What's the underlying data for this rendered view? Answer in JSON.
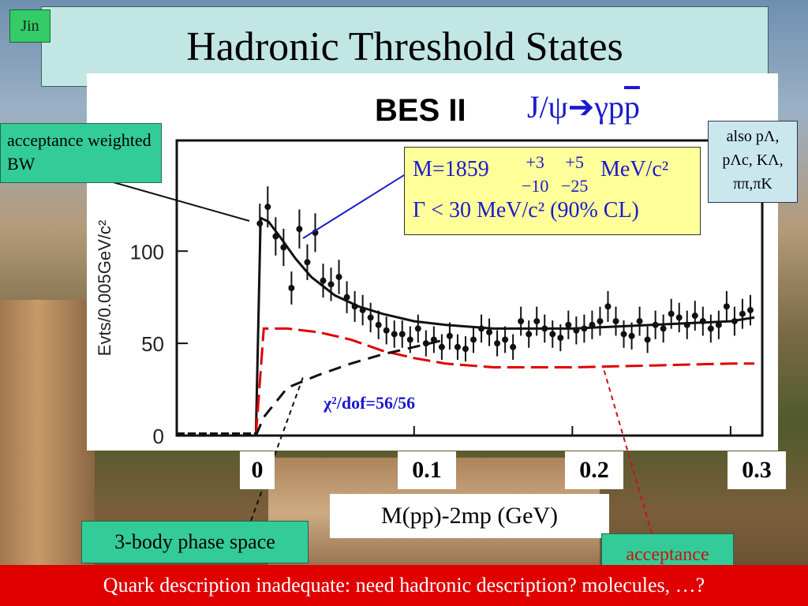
{
  "slide": {
    "corner_tag": "Jin",
    "title": "Hadronic Threshold States",
    "experiment": "BES II",
    "reaction_prefix": "J/ψ",
    "reaction_suffix": "γp",
    "reaction_pbar": "p",
    "fit_result": {
      "mass_prefix": "M=1859",
      "mass_err_stat_up": "+3",
      "mass_err_stat_down": "−10",
      "mass_err_sys_up": "+5",
      "mass_err_sys_down": "−25",
      "mass_unit": "MeV/c²",
      "width_line": "Γ < 30 MeV/c² (90% CL)"
    },
    "note_bw": "acceptance weighted BW",
    "note_also": [
      "also pΛ,",
      "pΛc, KΛ,",
      "ππ,πK"
    ],
    "chi2": "χ²/dof=56/56",
    "x_ticks_big": [
      "0",
      "0.1",
      "0.2",
      "0.3"
    ],
    "xlabel": "M(pp)-2mp (GeV)",
    "note_phase_space": "3-body phase space",
    "note_acceptance": "acceptance",
    "footer": "Quark description inadequate: need hadronic description? molecules, …?",
    "colors": {
      "title_bg": "#c2e6e4",
      "note_bg": "#33cc99",
      "footer_bg": "#e00000",
      "reaction": "#1a1acc",
      "acceptance_curve": "#e00000"
    }
  },
  "chart_data": {
    "type": "scatter",
    "title": "",
    "xlabel": "M(pp)-2mp (GeV)",
    "ylabel": "Evts/0.005GeV/c²",
    "xlim": [
      -0.05,
      0.32
    ],
    "ylim": [
      0,
      160
    ],
    "y_ticks": [
      0,
      50,
      100
    ],
    "x_ticks": [
      0,
      0.1,
      0.2,
      0.3
    ],
    "series": [
      {
        "kind": "points",
        "x": [
          0.0025,
          0.0075,
          0.0125,
          0.0175,
          0.0225,
          0.0275,
          0.0325,
          0.0375,
          0.0425,
          0.0475,
          0.0525,
          0.0575,
          0.0625,
          0.0675,
          0.0725,
          0.0775,
          0.0825,
          0.0875,
          0.0925,
          0.0975,
          0.1025,
          0.1075,
          0.1125,
          0.1175,
          0.1225,
          0.1275,
          0.1325,
          0.1375,
          0.1425,
          0.1475,
          0.1525,
          0.1575,
          0.1625,
          0.1675,
          0.1725,
          0.1775,
          0.1825,
          0.1875,
          0.1925,
          0.1975,
          0.2025,
          0.2075,
          0.2125,
          0.2175,
          0.2225,
          0.2275,
          0.2325,
          0.2375,
          0.2425,
          0.2475,
          0.2525,
          0.2575,
          0.2625,
          0.2675,
          0.2725,
          0.2775,
          0.2825,
          0.2875,
          0.2925,
          0.2975,
          0.3025,
          0.3075,
          0.3125
        ],
        "y": [
          115,
          124,
          108,
          102,
          80,
          112,
          94,
          110,
          84,
          82,
          86,
          75,
          70,
          68,
          64,
          60,
          57,
          55,
          55,
          52,
          58,
          50,
          52,
          48,
          54,
          48,
          47,
          52,
          58,
          56,
          50,
          52,
          48,
          62,
          55,
          62,
          58,
          55,
          53,
          60,
          57,
          58,
          60,
          62,
          70,
          62,
          55,
          54,
          62,
          52,
          60,
          58,
          66,
          64,
          60,
          65,
          62,
          58,
          60,
          70,
          62,
          66,
          68
        ]
      },
      {
        "kind": "curve",
        "label": "acceptance weighted BW",
        "x": [
          0.0,
          0.003,
          0.008,
          0.015,
          0.025,
          0.035,
          0.05,
          0.065,
          0.08,
          0.1,
          0.12,
          0.15,
          0.2,
          0.25,
          0.3,
          0.315
        ],
        "y": [
          0,
          118,
          116,
          108,
          96,
          86,
          76,
          70,
          66,
          62,
          60,
          58,
          58,
          60,
          62,
          64
        ]
      },
      {
        "kind": "curve",
        "label": "acceptance",
        "x": [
          0.0,
          0.005,
          0.02,
          0.04,
          0.06,
          0.08,
          0.1,
          0.12,
          0.15,
          0.2,
          0.25,
          0.3,
          0.315
        ],
        "y": [
          0,
          58,
          58,
          56,
          52,
          46,
          42,
          39,
          37,
          37,
          38,
          39,
          39
        ]
      },
      {
        "kind": "curve",
        "label": "3-body phase space",
        "x": [
          0.0,
          0.005,
          0.02,
          0.04,
          0.06,
          0.08,
          0.1,
          0.12
        ],
        "y": [
          0,
          10,
          26,
          33,
          39,
          44,
          48,
          52
        ]
      }
    ]
  }
}
